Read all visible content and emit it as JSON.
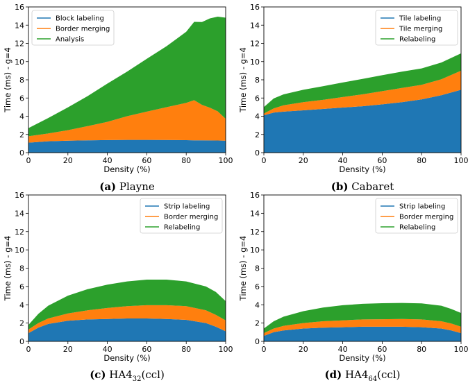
{
  "colors": {
    "blue": "#1f77b4",
    "orange": "#ff7f0e",
    "green": "#2ca02c"
  },
  "chart_data": [
    {
      "type": "area",
      "stacked": true,
      "caption": {
        "letter": "(a)",
        "text": "Playne",
        "sub": ""
      },
      "xlabel": "Density (%)",
      "ylabel": "Time (ms) - g=4",
      "xlim": [
        0,
        100
      ],
      "ylim": [
        0,
        16
      ],
      "xticks": [
        0,
        20,
        40,
        60,
        80,
        100
      ],
      "yticks": [
        0,
        2,
        4,
        6,
        8,
        10,
        12,
        14,
        16
      ],
      "legend": "top-left",
      "x": [
        0,
        10,
        20,
        30,
        40,
        50,
        60,
        70,
        80,
        84,
        88,
        92,
        96,
        100
      ],
      "series": [
        {
          "name": "Block labeling",
          "color": "#1f77b4",
          "values": [
            1.1,
            1.25,
            1.32,
            1.36,
            1.38,
            1.4,
            1.4,
            1.39,
            1.37,
            1.36,
            1.35,
            1.34,
            1.33,
            1.32
          ]
        },
        {
          "name": "Border merging",
          "color": "#ff7f0e",
          "values": [
            0.7,
            0.85,
            1.15,
            1.55,
            2.0,
            2.6,
            3.1,
            3.6,
            4.1,
            4.4,
            3.9,
            3.6,
            3.2,
            2.4
          ]
        },
        {
          "name": "Analysis",
          "color": "#2ca02c",
          "values": [
            0.9,
            1.7,
            2.5,
            3.3,
            4.2,
            4.9,
            5.8,
            6.7,
            7.8,
            8.6,
            9.1,
            9.8,
            10.4,
            11.1
          ]
        }
      ]
    },
    {
      "type": "area",
      "stacked": true,
      "caption": {
        "letter": "(b)",
        "text": "Cabaret",
        "sub": ""
      },
      "xlabel": "Density (%)",
      "ylabel": "Time (ms) - g=4",
      "xlim": [
        0,
        100
      ],
      "ylim": [
        0,
        16
      ],
      "xticks": [
        0,
        20,
        40,
        60,
        80,
        100
      ],
      "yticks": [
        0,
        2,
        4,
        6,
        8,
        10,
        12,
        14,
        16
      ],
      "legend": "top-right",
      "x": [
        0,
        5,
        10,
        20,
        30,
        40,
        50,
        60,
        70,
        80,
        90,
        100
      ],
      "series": [
        {
          "name": "Tile labeling",
          "color": "#1f77b4",
          "values": [
            4.1,
            4.4,
            4.5,
            4.65,
            4.8,
            4.95,
            5.1,
            5.3,
            5.55,
            5.85,
            6.3,
            6.9
          ]
        },
        {
          "name": "Tile merging",
          "color": "#ff7f0e",
          "values": [
            0.2,
            0.45,
            0.7,
            0.9,
            1.0,
            1.15,
            1.3,
            1.45,
            1.55,
            1.6,
            1.75,
            2.1
          ]
        },
        {
          "name": "Relabeling",
          "color": "#2ca02c",
          "values": [
            0.7,
            1.1,
            1.2,
            1.35,
            1.5,
            1.6,
            1.7,
            1.75,
            1.8,
            1.8,
            1.85,
            1.9
          ]
        }
      ]
    },
    {
      "type": "area",
      "stacked": true,
      "caption": {
        "letter": "(c)",
        "text": "HA4",
        "sub": "32",
        "suffix": "(ccl)"
      },
      "xlabel": "Density (%)",
      "ylabel": "Time (ms) - g=4",
      "xlim": [
        0,
        100
      ],
      "ylim": [
        0,
        16
      ],
      "xticks": [
        0,
        20,
        40,
        60,
        80,
        100
      ],
      "yticks": [
        0,
        2,
        4,
        6,
        8,
        10,
        12,
        14,
        16
      ],
      "legend": "top-right",
      "x": [
        0,
        5,
        10,
        20,
        30,
        40,
        50,
        60,
        70,
        80,
        90,
        95,
        100
      ],
      "series": [
        {
          "name": "Strip labeling",
          "color": "#1f77b4",
          "values": [
            0.9,
            1.5,
            1.9,
            2.25,
            2.4,
            2.45,
            2.5,
            2.5,
            2.45,
            2.35,
            2.0,
            1.6,
            1.1
          ]
        },
        {
          "name": "Border merging",
          "color": "#ff7f0e",
          "values": [
            0.4,
            0.5,
            0.6,
            0.8,
            1.0,
            1.2,
            1.35,
            1.45,
            1.5,
            1.5,
            1.4,
            1.3,
            1.2
          ]
        },
        {
          "name": "Relabeling",
          "color": "#2ca02c",
          "values": [
            0.5,
            1.0,
            1.4,
            1.95,
            2.3,
            2.55,
            2.7,
            2.8,
            2.8,
            2.7,
            2.6,
            2.5,
            2.1
          ]
        }
      ]
    },
    {
      "type": "area",
      "stacked": true,
      "caption": {
        "letter": "(d)",
        "text": "HA4",
        "sub": "64",
        "suffix": "(ccl)"
      },
      "xlabel": "Density (%)",
      "ylabel": "Time (ms) - g=4",
      "xlim": [
        0,
        100
      ],
      "ylim": [
        0,
        16
      ],
      "xticks": [
        0,
        20,
        40,
        60,
        80,
        100
      ],
      "yticks": [
        0,
        2,
        4,
        6,
        8,
        10,
        12,
        14,
        16
      ],
      "legend": "top-right",
      "x": [
        0,
        5,
        10,
        20,
        30,
        40,
        50,
        60,
        70,
        80,
        90,
        95,
        100
      ],
      "series": [
        {
          "name": "Strip labeling",
          "color": "#1f77b4",
          "values": [
            0.6,
            1.0,
            1.2,
            1.4,
            1.5,
            1.55,
            1.6,
            1.6,
            1.6,
            1.55,
            1.4,
            1.2,
            0.9
          ]
        },
        {
          "name": "Border merging",
          "color": "#ff7f0e",
          "values": [
            0.3,
            0.4,
            0.5,
            0.6,
            0.7,
            0.75,
            0.8,
            0.82,
            0.85,
            0.85,
            0.8,
            0.75,
            0.7
          ]
        },
        {
          "name": "Relabeling",
          "color": "#2ca02c",
          "values": [
            0.5,
            0.8,
            1.0,
            1.3,
            1.5,
            1.65,
            1.7,
            1.75,
            1.75,
            1.75,
            1.7,
            1.6,
            1.5
          ]
        }
      ]
    }
  ]
}
